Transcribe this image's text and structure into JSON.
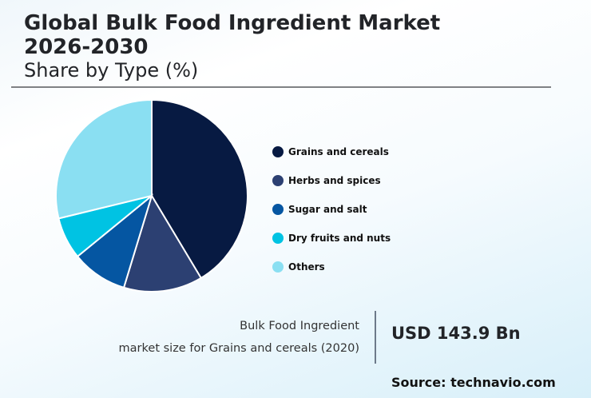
{
  "header": {
    "title_line1": "Global Bulk Food Ingredient Market",
    "title_line2": "2026-2030",
    "subtitle": "Share by Type (%)"
  },
  "legend": [
    {
      "label": "Grains and cereals",
      "color": "#071a42"
    },
    {
      "label": "Herbs and spices",
      "color": "#2c4072"
    },
    {
      "label": "Sugar and salt",
      "color": "#0556a2"
    },
    {
      "label": "Dry fruits and nuts",
      "color": "#00c3e3"
    },
    {
      "label": "Others",
      "color": "#8adff2"
    }
  ],
  "stat": {
    "label_line1": "Bulk Food Ingredient",
    "label_line2": "market size for Grains and cereals (2020)",
    "value": "USD 143.9 Bn"
  },
  "source": "Source: technavio.com",
  "chart_data": {
    "type": "pie",
    "title": "Global Bulk Food Ingredient Market 2026-2030",
    "subtitle": "Share by Type (%)",
    "categories": [
      "Grains and cereals",
      "Herbs and spices",
      "Sugar and salt",
      "Dry fruits and nuts",
      "Others"
    ],
    "values": [
      41.4,
      13.3,
      9.4,
      7.1,
      28.8
    ],
    "colors": [
      "#071a42",
      "#2c4072",
      "#0556a2",
      "#00c3e3",
      "#8adff2"
    ],
    "start_angle": "12 o'clock, clockwise",
    "legend_position": "right"
  }
}
